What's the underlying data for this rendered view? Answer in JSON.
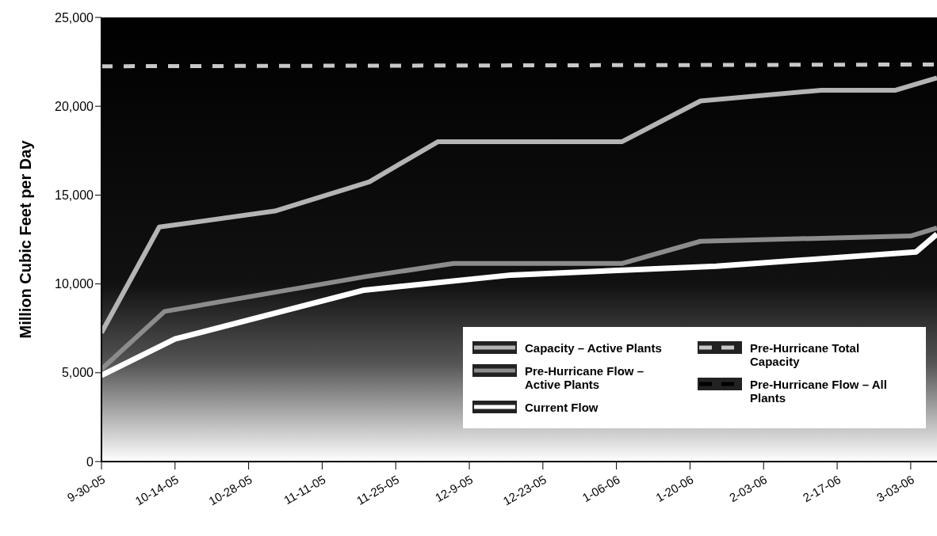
{
  "chart_data": {
    "type": "line",
    "ylabel": "Million Cubic Feet per Day",
    "xlim": [
      "2005-09-30",
      "2006-03-08"
    ],
    "xticks": [
      {
        "value": "2005-09-30",
        "label": "9-30-05"
      },
      {
        "value": "2005-10-14",
        "label": "10-14-05"
      },
      {
        "value": "2005-10-28",
        "label": "10-28-05"
      },
      {
        "value": "2005-11-11",
        "label": "11-11-05"
      },
      {
        "value": "2005-11-25",
        "label": "11-25-05"
      },
      {
        "value": "2005-12-09",
        "label": "12-9-05"
      },
      {
        "value": "2005-12-23",
        "label": "12-23-05"
      },
      {
        "value": "2006-01-06",
        "label": "1-06-06"
      },
      {
        "value": "2006-01-20",
        "label": "1-20-06"
      },
      {
        "value": "2006-02-03",
        "label": "2-03-06"
      },
      {
        "value": "2006-02-17",
        "label": "2-17-06"
      },
      {
        "value": "2006-03-03",
        "label": "3-03-06"
      }
    ],
    "ylim": [
      0,
      25000
    ],
    "yticks": [
      0,
      {
        "value": 5000,
        "label": "5,000"
      },
      {
        "value": 10000,
        "label": "10,000"
      },
      {
        "value": 15000,
        "label": "15,000"
      },
      {
        "value": 20000,
        "label": "20,000"
      },
      {
        "value": 25000,
        "label": "25,000"
      }
    ],
    "legend": "bottom right",
    "marker": "none",
    "series": [
      {
        "name": "Capacity – Active Plants",
        "color": "#b4b4b4",
        "line_style": "solid",
        "x": [
          "2005-09-30",
          "2005-10-11",
          "2005-11-02",
          "2005-11-20",
          "2005-12-03",
          "2006-01-07",
          "2006-01-22",
          "2006-02-14",
          "2006-02-28",
          "2006-03-08"
        ],
        "values": [
          7250,
          13200,
          14100,
          15750,
          18000,
          18000,
          20300,
          20900,
          20900,
          21600
        ]
      },
      {
        "name": "Pre-Hurricane Flow – Active Plants",
        "color": "#8c8c8c",
        "line_style": "solid",
        "x": [
          "2005-09-30",
          "2005-10-12",
          "2005-11-19",
          "2005-12-06",
          "2006-01-07",
          "2006-01-22",
          "2006-03-03",
          "2006-03-08"
        ],
        "values": [
          5200,
          8450,
          10400,
          11150,
          11150,
          12400,
          12700,
          13150
        ]
      },
      {
        "name": "Current Flow",
        "color": "#ffffff",
        "line_style": "solid",
        "x": [
          "2005-09-30",
          "2005-10-14",
          "2005-11-19",
          "2005-12-17",
          "2006-01-25",
          "2006-03-04",
          "2006-03-08"
        ],
        "values": [
          4850,
          6900,
          9650,
          10500,
          11000,
          11800,
          12800
        ]
      },
      {
        "name": "Pre-Hurricane Total Capacity",
        "color": "#c8c8c8",
        "line_style": "dashed",
        "x": [
          "2005-09-30",
          "2006-03-08"
        ],
        "values": [
          22250,
          22350
        ]
      },
      {
        "name": "Pre-Hurricane Flow – All Plants",
        "color": "#000000",
        "line_style": "dashed"
      }
    ]
  }
}
